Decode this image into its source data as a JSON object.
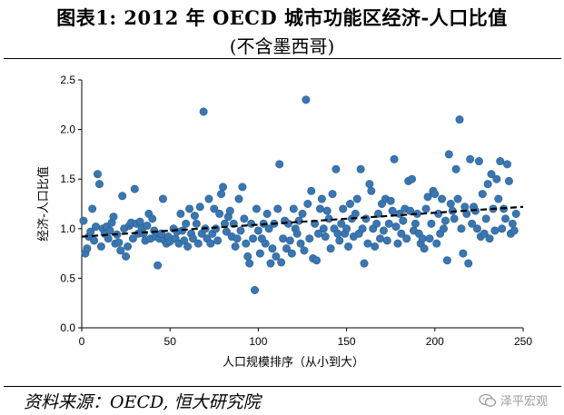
{
  "title_line1": "图表1:   2012 年 OECD 城市功能区经济-人口比值",
  "title_line2": "(不含墨西哥)",
  "source": "资料来源：OECD, 恒大研究院",
  "watermark": "泽平宏观",
  "chart_data": {
    "type": "scatter",
    "xlabel": "人口规模排序（从小到大）",
    "ylabel": "经济-人口比值",
    "xlim": [
      0,
      250
    ],
    "ylim": [
      0,
      2.5
    ],
    "xticks": [
      0,
      50,
      100,
      150,
      200,
      250
    ],
    "yticks": [
      0.0,
      0.5,
      1.0,
      1.5,
      2.0,
      2.5
    ],
    "ytick_labels": [
      "0.0",
      "0.5",
      "1.0",
      "1.5",
      "2.0",
      "2.5"
    ],
    "marker_color": "#3a76b0",
    "trendline": {
      "style": "dashed",
      "color": "#000000",
      "x": [
        0,
        250
      ],
      "y": [
        0.92,
        1.22
      ]
    },
    "points": [
      [
        1,
        1.08
      ],
      [
        2,
        0.75
      ],
      [
        3,
        0.8
      ],
      [
        4,
        0.92
      ],
      [
        5,
        0.97
      ],
      [
        6,
        1.2
      ],
      [
        7,
        0.88
      ],
      [
        8,
        1.02
      ],
      [
        9,
        1.55
      ],
      [
        10,
        1.45
      ],
      [
        11,
        0.82
      ],
      [
        12,
        1.0
      ],
      [
        13,
        0.95
      ],
      [
        14,
        1.02
      ],
      [
        15,
        0.9
      ],
      [
        16,
        0.98
      ],
      [
        17,
        1.06
      ],
      [
        18,
        1.12
      ],
      [
        19,
        0.85
      ],
      [
        20,
        0.94
      ],
      [
        21,
        0.86
      ],
      [
        22,
        0.78
      ],
      [
        23,
        1.33
      ],
      [
        24,
        1.0
      ],
      [
        25,
        0.72
      ],
      [
        26,
        0.82
      ],
      [
        27,
        1.03
      ],
      [
        28,
        1.06
      ],
      [
        29,
        0.9
      ],
      [
        30,
        1.4
      ],
      [
        31,
        1.05
      ],
      [
        32,
        0.95
      ],
      [
        33,
        1.07
      ],
      [
        34,
        1.0
      ],
      [
        35,
        0.95
      ],
      [
        36,
        0.88
      ],
      [
        37,
        1.03
      ],
      [
        38,
        1.15
      ],
      [
        39,
        0.9
      ],
      [
        40,
        1.1
      ],
      [
        41,
        0.98
      ],
      [
        42,
        0.92
      ],
      [
        43,
        0.63
      ],
      [
        44,
        0.9
      ],
      [
        45,
        0.95
      ],
      [
        46,
        1.3
      ],
      [
        47,
        0.88
      ],
      [
        48,
        0.85
      ],
      [
        49,
        0.92
      ],
      [
        50,
        0.87
      ],
      [
        52,
        1.0
      ],
      [
        53,
        0.9
      ],
      [
        54,
        0.97
      ],
      [
        55,
        0.85
      ],
      [
        56,
        1.15
      ],
      [
        57,
        0.98
      ],
      [
        58,
        0.88
      ],
      [
        59,
        1.05
      ],
      [
        60,
        0.82
      ],
      [
        61,
        1.2
      ],
      [
        62,
        0.95
      ],
      [
        63,
        0.9
      ],
      [
        64,
        1.13
      ],
      [
        65,
        1.05
      ],
      [
        66,
        0.85
      ],
      [
        67,
        1.22
      ],
      [
        68,
        0.95
      ],
      [
        69,
        2.18
      ],
      [
        70,
        1.0
      ],
      [
        71,
        0.9
      ],
      [
        72,
        1.3
      ],
      [
        73,
        0.85
      ],
      [
        74,
        0.95
      ],
      [
        75,
        1.2
      ],
      [
        76,
        1.0
      ],
      [
        77,
        0.88
      ],
      [
        78,
        1.15
      ],
      [
        79,
        1.35
      ],
      [
        80,
        1.42
      ],
      [
        81,
        1.05
      ],
      [
        82,
        0.97
      ],
      [
        83,
        1.12
      ],
      [
        84,
        1.18
      ],
      [
        85,
        0.92
      ],
      [
        86,
        1.05
      ],
      [
        87,
        0.82
      ],
      [
        88,
        0.9
      ],
      [
        89,
        1.3
      ],
      [
        90,
        0.98
      ],
      [
        91,
        1.42
      ],
      [
        92,
        1.1
      ],
      [
        93,
        0.85
      ],
      [
        94,
        0.72
      ],
      [
        95,
        0.65
      ],
      [
        96,
        1.05
      ],
      [
        97,
        0.9
      ],
      [
        98,
        0.38
      ],
      [
        99,
        1.2
      ],
      [
        100,
        0.98
      ],
      [
        101,
        0.75
      ],
      [
        102,
        0.9
      ],
      [
        103,
        1.05
      ],
      [
        104,
        0.85
      ],
      [
        105,
        1.15
      ],
      [
        106,
        1.0
      ],
      [
        107,
        0.65
      ],
      [
        108,
        0.8
      ],
      [
        109,
        1.05
      ],
      [
        110,
        0.72
      ],
      [
        111,
        1.2
      ],
      [
        112,
        1.65
      ],
      [
        113,
        0.66
      ],
      [
        114,
        0.9
      ],
      [
        115,
        1.08
      ],
      [
        116,
        0.8
      ],
      [
        117,
        1.05
      ],
      [
        118,
        0.88
      ],
      [
        119,
        0.75
      ],
      [
        120,
        1.2
      ],
      [
        121,
        1.0
      ],
      [
        122,
        0.95
      ],
      [
        123,
        1.08
      ],
      [
        124,
        0.85
      ],
      [
        125,
        1.15
      ],
      [
        126,
        0.78
      ],
      [
        127,
        2.3
      ],
      [
        128,
        1.25
      ],
      [
        129,
        0.9
      ],
      [
        130,
        1.38
      ],
      [
        131,
        0.7
      ],
      [
        132,
        1.05
      ],
      [
        133,
        0.68
      ],
      [
        134,
        0.95
      ],
      [
        135,
        1.2
      ],
      [
        136,
        1.3
      ],
      [
        137,
        1.0
      ],
      [
        138,
        0.92
      ],
      [
        139,
        1.18
      ],
      [
        140,
        1.1
      ],
      [
        141,
        0.8
      ],
      [
        142,
        1.35
      ],
      [
        143,
        1.0
      ],
      [
        144,
        1.6
      ],
      [
        145,
        0.95
      ],
      [
        146,
        0.88
      ],
      [
        147,
        1.05
      ],
      [
        148,
        1.2
      ],
      [
        149,
        0.95
      ],
      [
        150,
        1.0
      ],
      [
        151,
        0.82
      ],
      [
        152,
        1.25
      ],
      [
        153,
        1.1
      ],
      [
        154,
        0.92
      ],
      [
        155,
        1.15
      ],
      [
        156,
        1.3
      ],
      [
        157,
        0.95
      ],
      [
        158,
        1.6
      ],
      [
        159,
        1.0
      ],
      [
        160,
        0.65
      ],
      [
        161,
        1.1
      ],
      [
        162,
        0.85
      ],
      [
        163,
        1.45
      ],
      [
        164,
        1.38
      ],
      [
        165,
        1.0
      ],
      [
        166,
        0.82
      ],
      [
        167,
        1.05
      ],
      [
        168,
        1.15
      ],
      [
        169,
        0.9
      ],
      [
        170,
        1.25
      ],
      [
        171,
        0.98
      ],
      [
        172,
        1.3
      ],
      [
        173,
        0.88
      ],
      [
        174,
        1.05
      ],
      [
        175,
        1.28
      ],
      [
        176,
        1.18
      ],
      [
        177,
        1.7
      ],
      [
        178,
        1.02
      ],
      [
        179,
        0.85
      ],
      [
        180,
        1.15
      ],
      [
        181,
        0.95
      ],
      [
        182,
        1.08
      ],
      [
        183,
        1.2
      ],
      [
        184,
        0.9
      ],
      [
        185,
        1.48
      ],
      [
        186,
        1.18
      ],
      [
        187,
        1.5
      ],
      [
        188,
        0.98
      ],
      [
        189,
        1.05
      ],
      [
        190,
        1.15
      ],
      [
        191,
        0.95
      ],
      [
        192,
        0.85
      ],
      [
        193,
        0.9
      ],
      [
        194,
        0.8
      ],
      [
        195,
        1.2
      ],
      [
        196,
        1.32
      ],
      [
        197,
        0.9
      ],
      [
        198,
        1.05
      ],
      [
        199,
        1.38
      ],
      [
        200,
        1.35
      ],
      [
        201,
        0.85
      ],
      [
        202,
        1.15
      ],
      [
        203,
        0.95
      ],
      [
        204,
        1.3
      ],
      [
        205,
        1.0
      ],
      [
        206,
        1.08
      ],
      [
        207,
        0.68
      ],
      [
        208,
        1.75
      ],
      [
        209,
        1.25
      ],
      [
        210,
        1.18
      ],
      [
        211,
        1.1
      ],
      [
        212,
        1.6
      ],
      [
        213,
        1.3
      ],
      [
        214,
        2.1
      ],
      [
        215,
        1.0
      ],
      [
        216,
        0.75
      ],
      [
        217,
        1.22
      ],
      [
        218,
        1.15
      ],
      [
        219,
        0.65
      ],
      [
        220,
        1.7
      ],
      [
        221,
        1.05
      ],
      [
        222,
        1.22
      ],
      [
        223,
        1.18
      ],
      [
        224,
        1.0
      ],
      [
        225,
        1.68
      ],
      [
        226,
        0.92
      ],
      [
        227,
        1.35
      ],
      [
        228,
        0.95
      ],
      [
        229,
        1.1
      ],
      [
        230,
        1.45
      ],
      [
        231,
        0.9
      ],
      [
        232,
        1.55
      ],
      [
        233,
        1.2
      ],
      [
        234,
        0.98
      ],
      [
        235,
        1.5
      ],
      [
        236,
        1.3
      ],
      [
        237,
        1.68
      ],
      [
        238,
        1.0
      ],
      [
        239,
        1.2
      ],
      [
        240,
        1.1
      ],
      [
        241,
        1.65
      ],
      [
        242,
        1.48
      ],
      [
        243,
        0.95
      ],
      [
        244,
        1.05
      ],
      [
        245,
        0.98
      ],
      [
        246,
        1.15
      ]
    ]
  }
}
